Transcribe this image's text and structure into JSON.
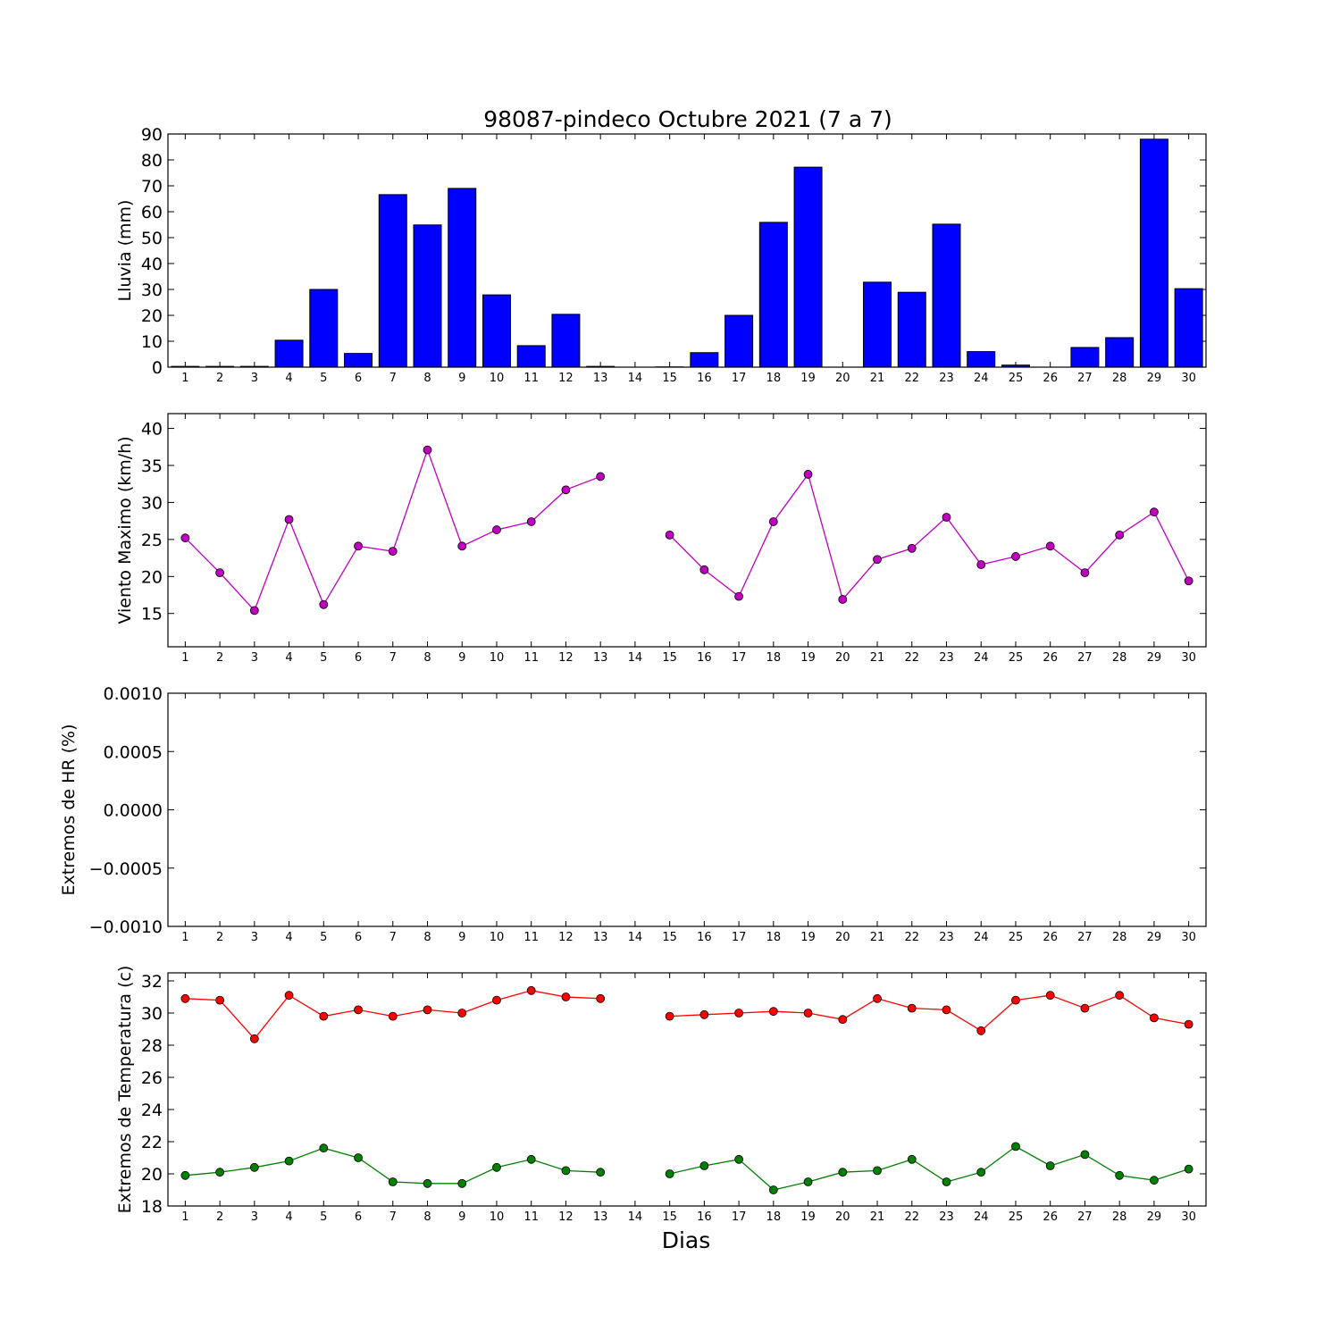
{
  "chart_data": [
    {
      "type": "bar",
      "title": "98087-pindeco Octubre 2021  (7 a 7)",
      "ylabel": "Lluvia (mm)",
      "xlabel": "",
      "categories": [
        "1",
        "2",
        "3",
        "4",
        "5",
        "6",
        "7",
        "8",
        "9",
        "10",
        "11",
        "12",
        "13",
        "14",
        "15",
        "16",
        "17",
        "18",
        "19",
        "20",
        "21",
        "22",
        "23",
        "24",
        "25",
        "26",
        "27",
        "28",
        "29",
        "30"
      ],
      "values": [
        0.3,
        0.3,
        0.3,
        10.4,
        30.0,
        5.3,
        66.6,
        54.9,
        69.0,
        27.9,
        8.3,
        20.4,
        0.3,
        0,
        0.1,
        5.6,
        20.0,
        55.9,
        77.2,
        0,
        32.8,
        28.9,
        55.2,
        6.0,
        0.8,
        0,
        7.6,
        11.4,
        88.0,
        30.3
      ],
      "ylim": [
        0,
        90
      ],
      "yticks": [
        "0",
        "10",
        "20",
        "30",
        "40",
        "50",
        "60",
        "70",
        "80",
        "90"
      ],
      "colors": {
        "bar": "#0000ff"
      }
    },
    {
      "type": "line",
      "ylabel": "Viento Maximo (km/h)",
      "xlabel": "",
      "x": [
        1,
        2,
        3,
        4,
        5,
        6,
        7,
        8,
        9,
        10,
        11,
        12,
        13,
        14,
        15,
        16,
        17,
        18,
        19,
        20,
        21,
        22,
        23,
        24,
        25,
        26,
        27,
        28,
        29,
        30
      ],
      "series": [
        {
          "values": [
            25.2,
            20.5,
            15.4,
            27.7,
            16.2,
            24.1,
            23.4,
            37.1,
            24.1,
            26.3,
            27.4,
            31.7,
            33.5,
            null,
            25.6,
            20.9,
            17.3,
            27.4,
            33.8,
            16.9,
            22.3,
            23.8,
            28.0,
            21.6,
            22.7,
            24.1,
            20.5,
            25.6,
            28.7,
            19.4
          ],
          "color": "#bf00bf"
        }
      ],
      "ylim": [
        10.5,
        42
      ],
      "yticks": [
        "15",
        "20",
        "25",
        "30",
        "35",
        "40"
      ]
    },
    {
      "type": "line",
      "ylabel": "Extremos de HR (%)",
      "xlabel": "",
      "x": [
        1,
        2,
        3,
        4,
        5,
        6,
        7,
        8,
        9,
        10,
        11,
        12,
        13,
        14,
        15,
        16,
        17,
        18,
        19,
        20,
        21,
        22,
        23,
        24,
        25,
        26,
        27,
        28,
        29,
        30
      ],
      "series": [],
      "ylim": [
        -0.001,
        0.001
      ],
      "yticks": [
        "−0.0010",
        "−0.0005",
        "0.0000",
        "0.0005",
        "0.0010"
      ]
    },
    {
      "type": "line",
      "ylabel": "Extremos de Temperatura (c)",
      "xlabel": "Dias",
      "x": [
        1,
        2,
        3,
        4,
        5,
        6,
        7,
        8,
        9,
        10,
        11,
        12,
        13,
        14,
        15,
        16,
        17,
        18,
        19,
        20,
        21,
        22,
        23,
        24,
        25,
        26,
        27,
        28,
        29,
        30
      ],
      "series": [
        {
          "values": [
            30.9,
            30.8,
            28.4,
            31.1,
            29.8,
            30.2,
            29.8,
            30.2,
            30.0,
            30.8,
            31.4,
            31.0,
            30.9,
            null,
            29.8,
            29.9,
            30.0,
            30.1,
            30.0,
            29.6,
            30.9,
            30.3,
            30.2,
            28.9,
            30.8,
            31.1,
            30.3,
            31.1,
            29.7,
            29.3
          ],
          "color": "#ff0000"
        },
        {
          "values": [
            19.9,
            20.1,
            20.4,
            20.8,
            21.6,
            21.0,
            19.5,
            19.4,
            19.4,
            20.4,
            20.9,
            20.2,
            20.1,
            null,
            20.0,
            20.5,
            20.9,
            19.0,
            19.5,
            20.1,
            20.2,
            20.9,
            19.5,
            20.1,
            21.7,
            20.5,
            21.2,
            19.9,
            19.6,
            20.3
          ],
          "color": "#008000"
        }
      ],
      "ylim": [
        18,
        32.5
      ],
      "yticks": [
        "18",
        "20",
        "22",
        "24",
        "26",
        "28",
        "30",
        "32"
      ]
    }
  ]
}
